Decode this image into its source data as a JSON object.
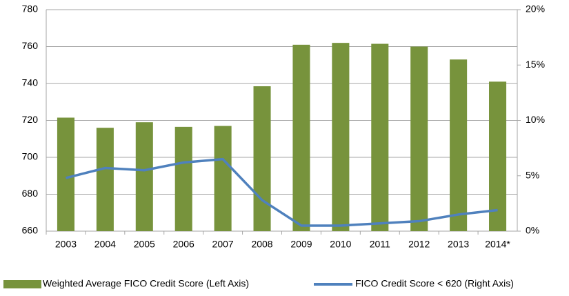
{
  "chart_data": {
    "type": "bar-line",
    "categories": [
      "2003",
      "2004",
      "2005",
      "2006",
      "2007",
      "2008",
      "2009",
      "2010",
      "2011",
      "2012",
      "2013",
      "2014*"
    ],
    "series": [
      {
        "name": "Weighted Average FICO Credit Score (Left Axis)",
        "type": "bar",
        "color": "#77933c",
        "values": [
          721.5,
          716,
          719,
          716.5,
          717,
          738.5,
          761,
          762,
          761.5,
          760,
          753,
          741
        ]
      },
      {
        "name": "FICO Credit Score < 620 (Right Axis)",
        "type": "line",
        "axis": "y2",
        "color": "#4f81bd",
        "values": [
          4.8,
          5.7,
          5.5,
          6.2,
          6.5,
          2.8,
          0.5,
          0.5,
          0.7,
          0.9,
          1.5,
          1.9
        ]
      }
    ],
    "ylim": [
      660,
      780
    ],
    "yticks": [
      660,
      680,
      700,
      720,
      740,
      760,
      780
    ],
    "y2lim": [
      0,
      20
    ],
    "y2ticks": [
      {
        "value": 0,
        "label": "0%"
      },
      {
        "value": 5,
        "label": "5%"
      },
      {
        "value": 10,
        "label": "10%"
      },
      {
        "value": 15,
        "label": "15%"
      },
      {
        "value": 20,
        "label": "20%"
      }
    ],
    "grid": true,
    "legend": "bottom"
  }
}
